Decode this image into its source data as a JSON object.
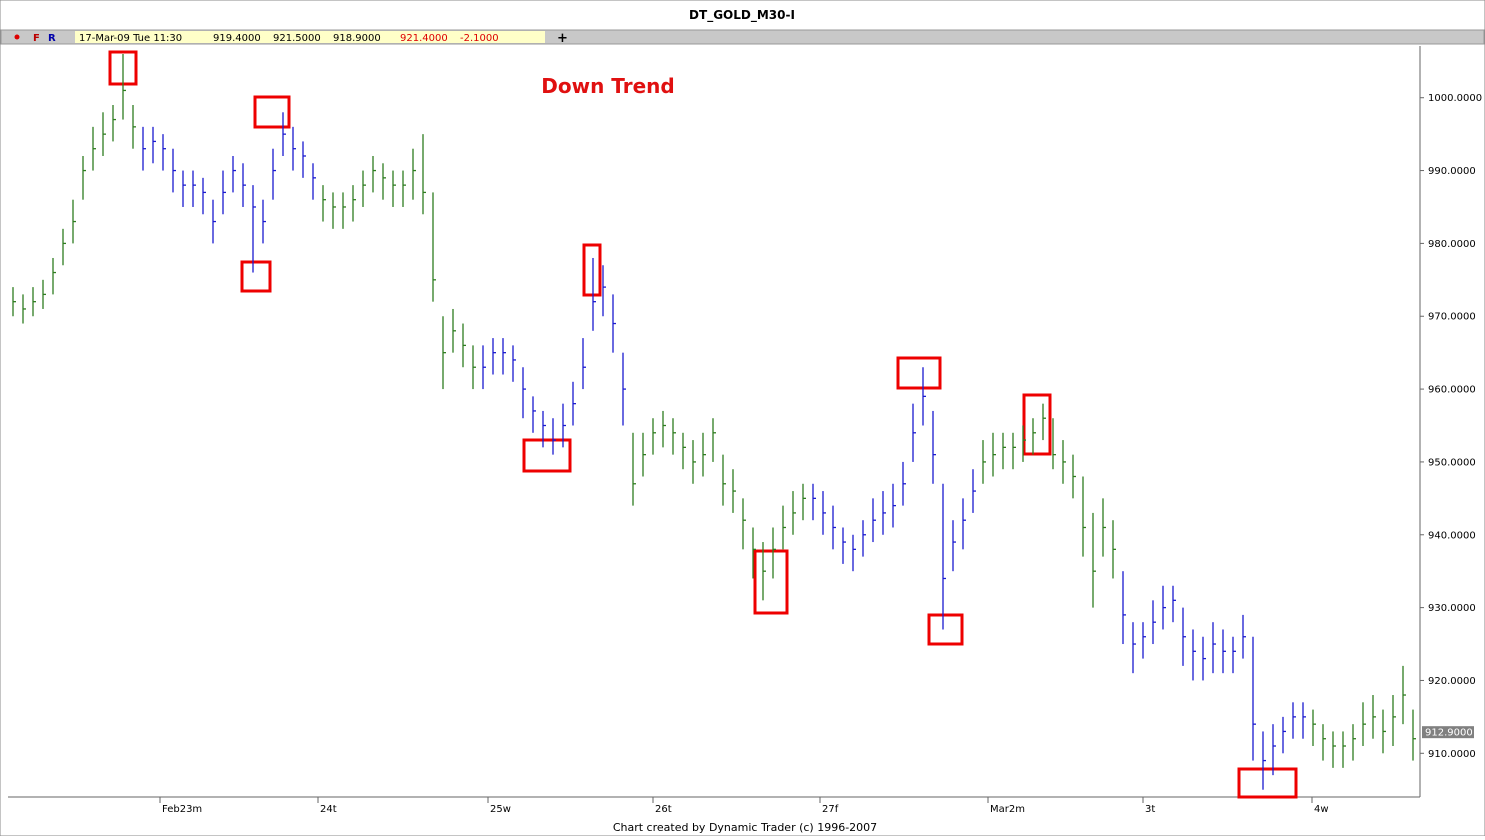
{
  "header": {
    "title": "DT_GOLD_M30-I",
    "flags": [
      "F",
      "R"
    ],
    "date": "17-Mar-09 Tue 11:30",
    "open": "919.4000",
    "high": "921.5000",
    "low": "918.9000",
    "close": "921.4000",
    "change": "-2.1000",
    "plus": "+"
  },
  "chart_data": {
    "type": "ohlc",
    "annotation": "Down Trend",
    "footer": "Chart created by Dynamic Trader  (c) 1996-2007",
    "xlim": [
      0,
      141.2
    ],
    "xticks": [
      {
        "value": 15.2,
        "label": "Feb23m"
      },
      {
        "value": 31.0,
        "label": "24t"
      },
      {
        "value": 48.0,
        "label": "25w"
      },
      {
        "value": 64.5,
        "label": "26t"
      },
      {
        "value": 81.2,
        "label": "27f"
      },
      {
        "value": 98.0,
        "label": "Mar2m"
      },
      {
        "value": 113.5,
        "label": "3t"
      },
      {
        "value": 130.4,
        "label": "4w"
      }
    ],
    "ylim": [
      904,
      1007.1
    ],
    "yticks": [
      {
        "value": 910,
        "label": "910.0000"
      },
      {
        "value": 920,
        "label": "920.0000"
      },
      {
        "value": 930,
        "label": "930.0000"
      },
      {
        "value": 940,
        "label": "940.0000"
      },
      {
        "value": 950,
        "label": "950.0000"
      },
      {
        "value": 960,
        "label": "960.0000"
      },
      {
        "value": 970,
        "label": "970.0000"
      },
      {
        "value": 980,
        "label": "980.0000"
      },
      {
        "value": 990,
        "label": "990.0000"
      },
      {
        "value": 1000,
        "label": "1000.0000"
      }
    ],
    "last_price": {
      "value": 912.9,
      "label": "912.9000"
    },
    "color_runs": [
      {
        "color": "#2e7d1f",
        "count": 13
      },
      {
        "color": "#1a1ad0",
        "count": 18
      },
      {
        "color": "#2e7d1f",
        "count": 16
      },
      {
        "color": "#1a1ad0",
        "count": 15
      },
      {
        "color": "#2e7d1f",
        "count": 18
      },
      {
        "color": "#1a1ad0",
        "count": 17
      },
      {
        "color": "#2e7d1f",
        "count": 14
      },
      {
        "color": "#1a1ad0",
        "count": 19
      },
      {
        "color": "#2e7d1f",
        "count": 11
      }
    ],
    "high": [
      974,
      973,
      974,
      975,
      978,
      982,
      986,
      992,
      996,
      998,
      999,
      1006,
      999,
      996,
      996,
      995,
      993,
      990,
      990,
      989,
      986,
      990,
      992,
      991,
      988,
      986,
      993,
      998,
      996,
      994,
      991,
      988,
      987,
      987,
      988,
      990,
      992,
      991,
      990,
      990,
      993,
      995,
      987,
      970,
      971,
      969,
      966,
      966,
      967,
      967,
      966,
      963,
      959,
      957,
      956,
      958,
      961,
      967,
      978,
      977,
      973,
      965,
      954,
      954,
      956,
      957,
      956,
      954,
      953,
      954,
      956,
      951,
      949,
      945,
      941,
      939,
      941,
      944,
      946,
      947,
      947,
      946,
      944,
      941,
      940,
      942,
      945,
      946,
      947,
      950,
      958,
      963,
      957,
      947,
      942,
      945,
      949,
      953,
      954,
      954,
      954,
      955,
      956,
      958,
      956,
      953,
      951,
      948,
      943,
      945,
      942,
      935,
      928,
      928,
      931,
      933,
      933,
      930,
      927,
      926,
      928,
      927,
      926,
      929,
      926,
      913,
      914,
      915,
      917,
      917,
      916,
      914,
      913,
      913,
      914,
      917,
      918,
      916,
      918,
      922,
      916
    ],
    "low": [
      970,
      969,
      970,
      971,
      973,
      977,
      980,
      986,
      990,
      992,
      994,
      997,
      993,
      990,
      991,
      990,
      987,
      985,
      985,
      984,
      980,
      984,
      987,
      985,
      976,
      980,
      986,
      992,
      990,
      989,
      986,
      983,
      982,
      982,
      983,
      985,
      987,
      986,
      985,
      985,
      986,
      984,
      972,
      960,
      965,
      963,
      960,
      960,
      962,
      962,
      961,
      956,
      954,
      952,
      951,
      952,
      955,
      960,
      968,
      970,
      965,
      955,
      944,
      948,
      951,
      952,
      951,
      949,
      947,
      948,
      950,
      944,
      943,
      938,
      934,
      931,
      934,
      938,
      940,
      942,
      942,
      940,
      938,
      936,
      935,
      937,
      939,
      940,
      941,
      944,
      950,
      955,
      947,
      927,
      935,
      938,
      943,
      947,
      948,
      949,
      949,
      950,
      951,
      953,
      949,
      947,
      945,
      937,
      930,
      937,
      934,
      925,
      921,
      923,
      925,
      927,
      928,
      922,
      920,
      920,
      921,
      921,
      921,
      923,
      909,
      905,
      907,
      910,
      912,
      912,
      911,
      909,
      908,
      908,
      909,
      911,
      912,
      910,
      911,
      914,
      909
    ],
    "close": [
      972,
      971,
      972,
      973,
      976,
      980,
      983,
      990,
      993,
      995,
      997,
      1001,
      996,
      993,
      994,
      993,
      990,
      988,
      988,
      987,
      983,
      987,
      990,
      988,
      985,
      983,
      990,
      995,
      993,
      992,
      989,
      986,
      985,
      985,
      986,
      988,
      990,
      989,
      988,
      988,
      990,
      987,
      975,
      965,
      968,
      966,
      963,
      963,
      965,
      965,
      964,
      960,
      957,
      955,
      953,
      955,
      958,
      963,
      972,
      974,
      969,
      960,
      947,
      951,
      954,
      955,
      954,
      952,
      950,
      951,
      954,
      947,
      946,
      942,
      938,
      935,
      938,
      941,
      943,
      945,
      945,
      943,
      941,
      939,
      938,
      940,
      942,
      943,
      944,
      947,
      954,
      959,
      951,
      934,
      939,
      942,
      946,
      950,
      951,
      952,
      952,
      953,
      954,
      956,
      951,
      950,
      948,
      941,
      935,
      941,
      938,
      929,
      925,
      926,
      928,
      930,
      931,
      926,
      924,
      923,
      925,
      924,
      924,
      926,
      914,
      909,
      911,
      913,
      915,
      915,
      914,
      912,
      911,
      911,
      912,
      914,
      915,
      913,
      915,
      918,
      912
    ]
  }
}
